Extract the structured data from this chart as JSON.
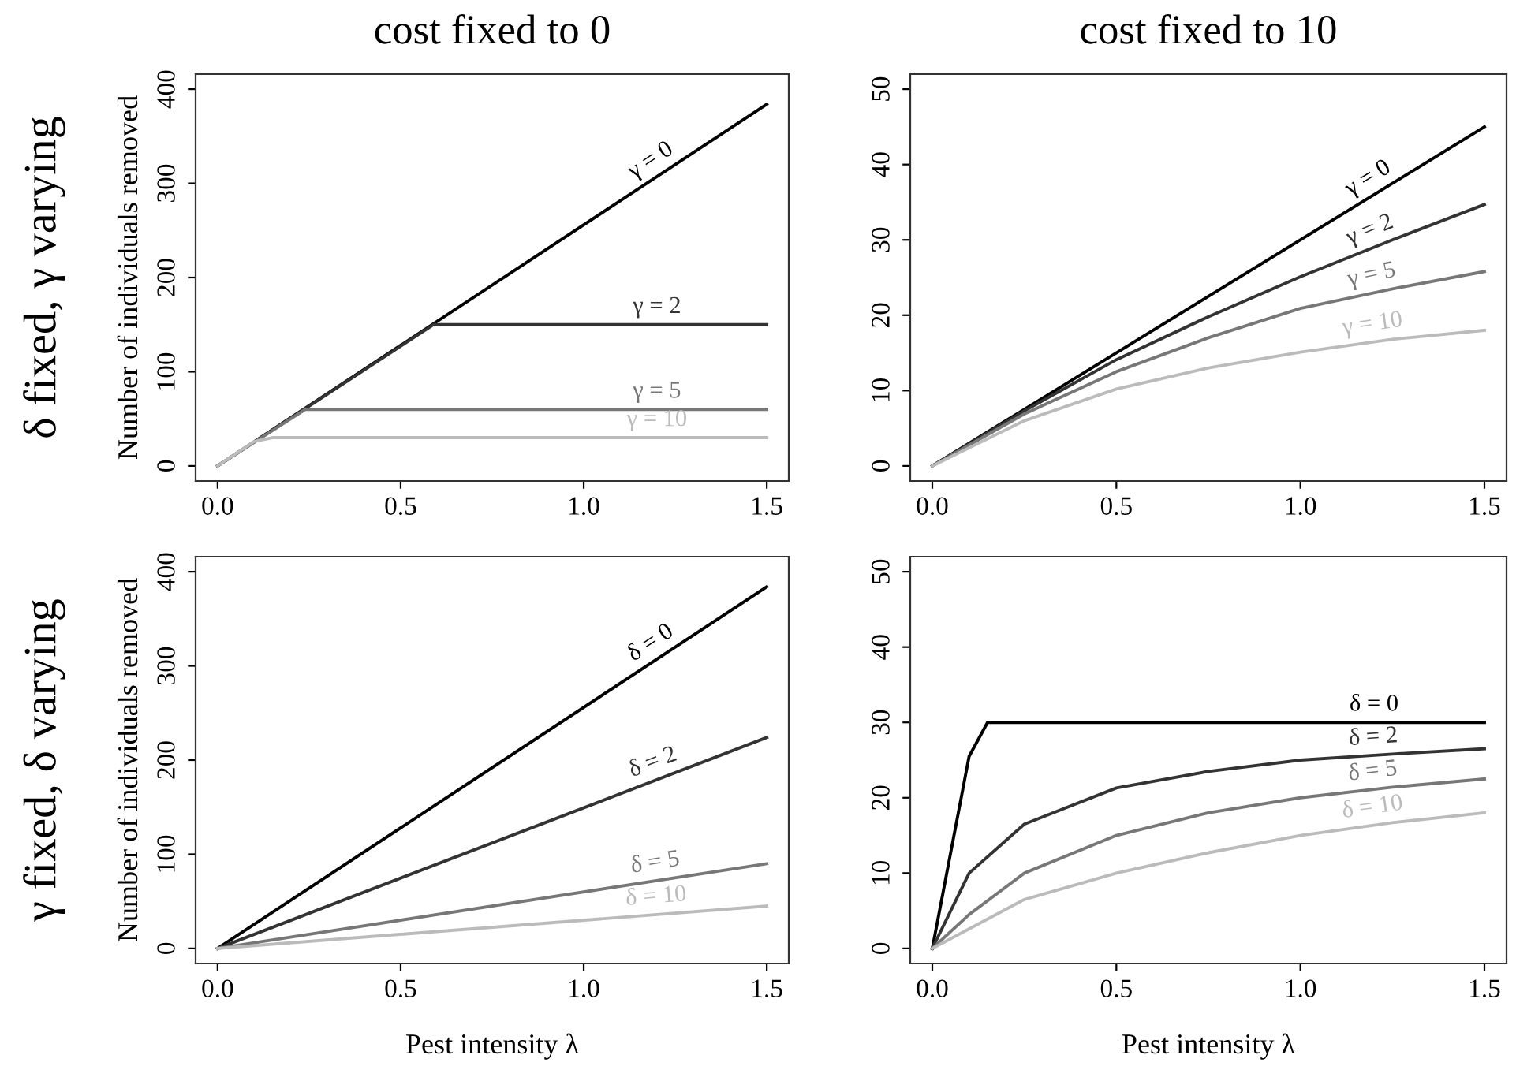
{
  "chart_data": [
    {
      "type": "line",
      "title": "cost fixed to 0",
      "ylabel": "Number of individuals removed",
      "annotations": [
        "δ fixed, γ varying"
      ],
      "xlim": [
        -0.06,
        1.56
      ],
      "ylim": [
        -16,
        416
      ],
      "xticks": [
        {
          "value": 0,
          "label": "0.0"
        },
        {
          "value": 0.5,
          "label": "0.5"
        },
        {
          "value": 1,
          "label": "1.0"
        },
        {
          "value": 1.5,
          "label": "1.5"
        }
      ],
      "yticks": [
        0,
        100,
        200,
        300,
        400
      ],
      "series": [
        {
          "name": "γ = 0",
          "color": "#000000",
          "x": [
            0,
            1.5
          ],
          "values": [
            0,
            384
          ]
        },
        {
          "name": "γ = 2",
          "color": "#333333",
          "x": [
            0,
            0.59,
            1.5
          ],
          "values": [
            0,
            150,
            150
          ]
        },
        {
          "name": "γ = 5",
          "color": "#777777",
          "x": [
            0,
            0.24,
            1.5
          ],
          "values": [
            0,
            60,
            60
          ]
        },
        {
          "name": "γ = 10",
          "color": "#bbbbbb",
          "x": [
            0,
            0.1,
            0.15,
            1.5
          ],
          "values": [
            0,
            26,
            30,
            30
          ]
        }
      ]
    },
    {
      "type": "line",
      "title": "cost fixed to 10",
      "xlim": [
        -0.06,
        1.56
      ],
      "ylim": [
        -2,
        52
      ],
      "xticks": [
        {
          "value": 0,
          "label": "0.0"
        },
        {
          "value": 0.5,
          "label": "0.5"
        },
        {
          "value": 1,
          "label": "1.0"
        },
        {
          "value": 1.5,
          "label": "1.5"
        }
      ],
      "yticks": [
        0,
        10,
        20,
        30,
        40,
        50
      ],
      "series": [
        {
          "name": "γ = 0",
          "color": "#000000",
          "x": [
            0,
            1.5
          ],
          "values": [
            0,
            45
          ]
        },
        {
          "name": "γ = 2",
          "color": "#333333",
          "x": [
            0,
            0.25,
            0.5,
            0.75,
            1.0,
            1.25,
            1.5
          ],
          "values": [
            0,
            7.3,
            14.1,
            19.8,
            25.1,
            30,
            34.7
          ]
        },
        {
          "name": "γ = 5",
          "color": "#777777",
          "x": [
            0,
            0.25,
            0.5,
            0.75,
            1.0,
            1.25,
            1.5
          ],
          "values": [
            0,
            6.9,
            12.5,
            17,
            20.9,
            23.5,
            25.8
          ]
        },
        {
          "name": "γ = 10",
          "color": "#bbbbbb",
          "x": [
            0,
            0.25,
            0.5,
            0.75,
            1.0,
            1.25,
            1.5
          ],
          "values": [
            0,
            6,
            10.2,
            13,
            15.1,
            16.8,
            18
          ]
        }
      ]
    },
    {
      "type": "line",
      "xlabel": "Pest intensity λ",
      "ylabel": "Number of individuals removed",
      "annotations": [
        "γ fixed, δ varying"
      ],
      "xlim": [
        -0.06,
        1.56
      ],
      "ylim": [
        -16,
        416
      ],
      "xticks": [
        {
          "value": 0,
          "label": "0.0"
        },
        {
          "value": 0.5,
          "label": "0.5"
        },
        {
          "value": 1,
          "label": "1.0"
        },
        {
          "value": 1.5,
          "label": "1.5"
        }
      ],
      "yticks": [
        0,
        100,
        200,
        300,
        400
      ],
      "series": [
        {
          "name": "δ = 0",
          "color": "#000000",
          "x": [
            0,
            1.5
          ],
          "values": [
            0,
            384
          ]
        },
        {
          "name": "δ = 2",
          "color": "#333333",
          "x": [
            0,
            1.5
          ],
          "values": [
            0,
            224
          ]
        },
        {
          "name": "δ = 5",
          "color": "#777777",
          "x": [
            0,
            1.5
          ],
          "values": [
            0,
            90
          ]
        },
        {
          "name": "δ = 10",
          "color": "#bbbbbb",
          "x": [
            0,
            1.5
          ],
          "values": [
            0,
            45
          ]
        }
      ]
    },
    {
      "type": "line",
      "xlabel": "Pest intensity λ",
      "xlim": [
        -0.06,
        1.56
      ],
      "ylim": [
        -2,
        52
      ],
      "xticks": [
        {
          "value": 0,
          "label": "0.0"
        },
        {
          "value": 0.5,
          "label": "0.5"
        },
        {
          "value": 1,
          "label": "1.0"
        },
        {
          "value": 1.5,
          "label": "1.5"
        }
      ],
      "yticks": [
        0,
        10,
        20,
        30,
        40,
        50
      ],
      "series": [
        {
          "name": "δ = 0",
          "color": "#000000",
          "x": [
            0,
            0.1,
            0.15,
            1.5
          ],
          "values": [
            0,
            25.5,
            30,
            30
          ]
        },
        {
          "name": "δ = 2",
          "color": "#333333",
          "x": [
            0,
            0.1,
            0.25,
            0.5,
            0.75,
            1.0,
            1.25,
            1.5
          ],
          "values": [
            0,
            10,
            16.5,
            21.3,
            23.5,
            25,
            25.8,
            26.5
          ]
        },
        {
          "name": "δ = 5",
          "color": "#777777",
          "x": [
            0,
            0.1,
            0.25,
            0.5,
            0.75,
            1.0,
            1.25,
            1.5
          ],
          "values": [
            0,
            4.5,
            10,
            15,
            18,
            20,
            21.4,
            22.5
          ]
        },
        {
          "name": "δ = 10",
          "color": "#bbbbbb",
          "x": [
            0,
            0.25,
            0.5,
            0.75,
            1.0,
            1.25,
            1.5
          ],
          "values": [
            0,
            6.5,
            10,
            12.7,
            15,
            16.7,
            18
          ]
        }
      ]
    }
  ]
}
